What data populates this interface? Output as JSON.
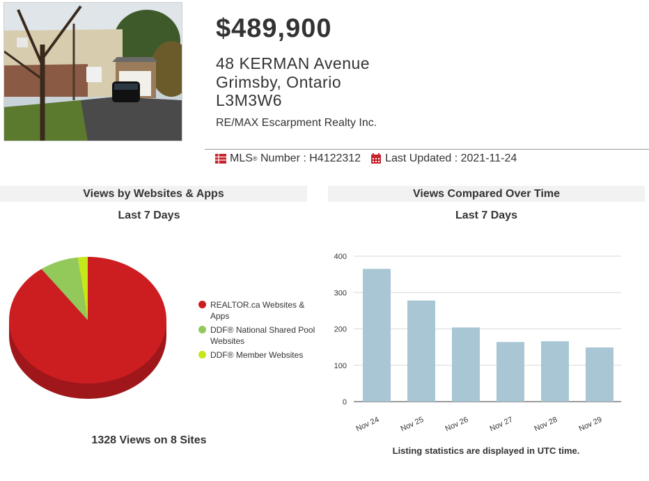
{
  "listing": {
    "price": "$489,900",
    "address_line1": "48 KERMAN Avenue",
    "address_line2": "Grimsby, Ontario",
    "postal_code": "L3M3W6",
    "brokerage": "RE/MAX Escarpment Realty Inc.",
    "mls_label": "MLS",
    "mls_reg": "®",
    "mls_suffix": " Number : ",
    "mls_number": "H4122312",
    "last_updated_label": "Last Updated : ",
    "last_updated": "2021-11-24",
    "photo_icon": "house-photo"
  },
  "pie_panel": {
    "title": "Views by Websites & Apps",
    "subtitle": "Last 7 Days",
    "total_text": "1328 Views on 8 Sites"
  },
  "bar_panel": {
    "title": "Views Compared Over Time",
    "subtitle": "Last 7 Days",
    "footnote": "Listing statistics are displayed in UTC time."
  },
  "colors": {
    "realtor_red": "#cc1e21",
    "ddf_green": "#93c95b",
    "member_lime": "#c4e81a",
    "bar_blue": "#a8c6d4",
    "icon_red": "#c8232c"
  },
  "chart_data": [
    {
      "type": "pie",
      "title": "Views by Websites & Apps",
      "subtitle": "Last 7 Days",
      "legend_position": "right",
      "series": [
        {
          "name": "REALTOR.ca Websites & Apps",
          "value": 90,
          "color": "#cc1e21"
        },
        {
          "name": "DDF® National Shared Pool Websites",
          "value": 8,
          "color": "#93c95b"
        },
        {
          "name": "DDF® Member Websites",
          "value": 2,
          "color": "#c4e81a"
        }
      ]
    },
    {
      "type": "bar",
      "title": "Views Compared Over Time",
      "subtitle": "Last 7 Days",
      "categories": [
        "Nov 24",
        "Nov 25",
        "Nov 26",
        "Nov 27",
        "Nov 28",
        "Nov 29"
      ],
      "values": [
        365,
        278,
        204,
        164,
        166,
        149
      ],
      "ylim": [
        0,
        400
      ],
      "yticks": [
        0,
        100,
        200,
        300,
        400
      ],
      "grid": true,
      "color": "#a8c6d4"
    }
  ]
}
